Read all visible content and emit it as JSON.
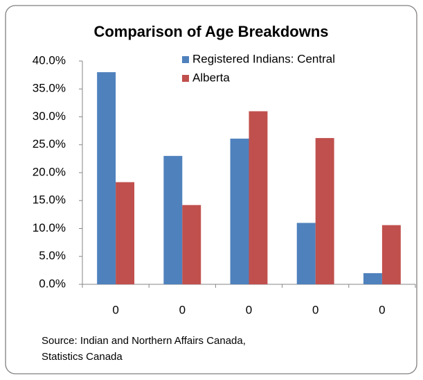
{
  "chart_data": {
    "type": "bar",
    "title": "Comparison of Age Breakdowns",
    "categories": [
      "0",
      "0",
      "0",
      "0",
      "0"
    ],
    "series": [
      {
        "name": "Registered Indians: Central",
        "color": "#4f81bd",
        "values": [
          38,
          23,
          26.1,
          11,
          2
        ]
      },
      {
        "name": "Alberta",
        "color": "#c0504d",
        "values": [
          18.3,
          14.2,
          31,
          26.2,
          10.6
        ]
      }
    ],
    "ylim": [
      0,
      40
    ],
    "yticks": [
      {
        "value": 0,
        "label": "0.0%"
      },
      {
        "value": 5,
        "label": "5.0%"
      },
      {
        "value": 10,
        "label": "10.0%"
      },
      {
        "value": 15,
        "label": "15.0%"
      },
      {
        "value": 20,
        "label": "20.0%"
      },
      {
        "value": 25,
        "label": "25.0%"
      },
      {
        "value": 30,
        "label": "30.0%"
      },
      {
        "value": 35,
        "label": "35.0%"
      },
      {
        "value": 40,
        "label": "40.0%"
      }
    ],
    "legend": "top-right",
    "source": [
      "Source: Indian and Northern Affairs Canada,",
      "Statistics Canada"
    ]
  }
}
